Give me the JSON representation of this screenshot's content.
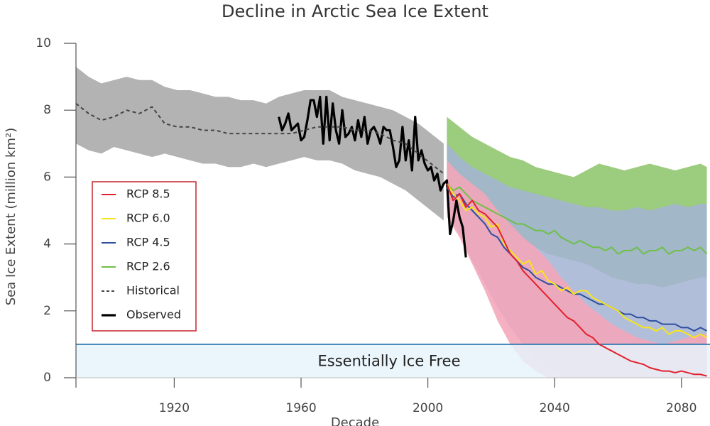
{
  "chart_data": {
    "type": "line",
    "title": "Decline in Arctic Sea Ice Extent",
    "xlabel": "Decade",
    "ylabel": "Sea Ice Extent (million km²)",
    "xlim": [
      1889,
      2089
    ],
    "ylim": [
      0,
      10
    ],
    "xticks": [
      1920,
      1960,
      2000,
      2040,
      2080
    ],
    "yticks": [
      0,
      2,
      4,
      6,
      8,
      10
    ],
    "legend": "left",
    "threshold": {
      "value": 1,
      "label": "Essentially Ice Free",
      "color": "#1f6fa8",
      "fill": "#e6f3fb"
    },
    "bands": [
      {
        "color": "#b3b3b3",
        "x": [
          1889,
          1893,
          1897,
          1901,
          1905,
          1909,
          1913,
          1917,
          1921,
          1925,
          1929,
          1933,
          1937,
          1941,
          1945,
          1949,
          1953,
          1957,
          1961,
          1965,
          1969,
          1973,
          1977,
          1981,
          1985,
          1989,
          1993,
          1997,
          2001,
          2005
        ],
        "upper": [
          9.3,
          9.0,
          8.8,
          8.9,
          9.0,
          8.9,
          8.9,
          8.7,
          8.6,
          8.6,
          8.5,
          8.4,
          8.4,
          8.3,
          8.3,
          8.2,
          8.4,
          8.5,
          8.6,
          8.6,
          8.6,
          8.4,
          8.3,
          8.2,
          8.1,
          8.0,
          7.8,
          7.6,
          7.3,
          7.0
        ],
        "lower": [
          7.0,
          6.8,
          6.7,
          6.9,
          6.8,
          6.7,
          6.6,
          6.7,
          6.6,
          6.5,
          6.4,
          6.4,
          6.3,
          6.3,
          6.4,
          6.3,
          6.4,
          6.5,
          6.6,
          6.5,
          6.5,
          6.4,
          6.2,
          6.1,
          6.0,
          5.8,
          5.6,
          5.3,
          5.0,
          4.7
        ]
      },
      {
        "color": "#9ccc7e",
        "x": [
          2006,
          2010,
          2014,
          2018,
          2022,
          2026,
          2030,
          2034,
          2038,
          2042,
          2046,
          2050,
          2054,
          2058,
          2062,
          2066,
          2070,
          2074,
          2078,
          2082,
          2086,
          2088
        ],
        "upper": [
          7.8,
          7.5,
          7.2,
          7.0,
          6.8,
          6.6,
          6.5,
          6.3,
          6.2,
          6.1,
          6.0,
          6.2,
          6.4,
          6.3,
          6.2,
          6.3,
          6.4,
          6.3,
          6.2,
          6.3,
          6.4,
          6.3
        ],
        "lower": [
          5.5,
          5.2,
          5.0,
          4.7,
          4.5,
          4.3,
          4.1,
          3.9,
          3.7,
          3.6,
          3.5,
          3.4,
          3.2,
          3.0,
          2.9,
          2.8,
          2.8,
          2.7,
          2.8,
          2.9,
          3.0,
          3.0
        ]
      },
      {
        "color": "#a3b3d3",
        "x": [
          2006,
          2010,
          2014,
          2018,
          2022,
          2026,
          2030,
          2034,
          2038,
          2042,
          2046,
          2050,
          2054,
          2058,
          2062,
          2066,
          2070,
          2074,
          2078,
          2082,
          2086,
          2088
        ],
        "upper": [
          7.0,
          6.6,
          6.3,
          6.1,
          5.9,
          5.7,
          5.6,
          5.5,
          5.4,
          5.3,
          5.2,
          5.1,
          5.1,
          5.0,
          5.0,
          5.1,
          5.0,
          5.1,
          5.2,
          5.1,
          5.2,
          5.2
        ],
        "lower": [
          5.0,
          4.3,
          3.5,
          2.8,
          2.1,
          1.5,
          1.0,
          0.6,
          0.3,
          0.1,
          0,
          0,
          0,
          0,
          0,
          0,
          0,
          0,
          0,
          0,
          0,
          0
        ]
      },
      {
        "color": "#f4a6ba",
        "x": [
          2006,
          2010,
          2014,
          2018,
          2022,
          2026,
          2030,
          2034,
          2038,
          2042,
          2046,
          2050,
          2054,
          2058,
          2062,
          2066,
          2070,
          2074,
          2078,
          2082,
          2086,
          2088
        ],
        "upper": [
          6.5,
          6.1,
          5.8,
          5.5,
          5.0,
          4.6,
          4.2,
          3.9,
          3.5,
          3.0,
          2.6,
          2.2,
          1.9,
          1.6,
          1.4,
          1.2,
          1.1,
          1.0,
          1.1,
          1.2,
          1.3,
          1.3
        ],
        "lower": [
          4.8,
          4.2,
          3.4,
          2.6,
          1.7,
          1.0,
          0.5,
          0.2,
          0,
          0,
          0,
          0,
          0,
          0,
          0,
          0,
          0,
          0,
          0,
          0,
          0,
          0
        ]
      }
    ],
    "series": [
      {
        "name": "RCP 8.5",
        "color": "#e3202b",
        "style": "solid",
        "width": 2,
        "x": [
          2006,
          2008,
          2010,
          2012,
          2014,
          2016,
          2018,
          2020,
          2022,
          2024,
          2026,
          2028,
          2030,
          2032,
          2034,
          2036,
          2038,
          2040,
          2042,
          2044,
          2046,
          2048,
          2050,
          2052,
          2054,
          2056,
          2058,
          2060,
          2062,
          2064,
          2066,
          2068,
          2070,
          2072,
          2074,
          2076,
          2078,
          2080,
          2082,
          2084,
          2086,
          2088
        ],
        "values": [
          5.8,
          5.3,
          5.5,
          5.1,
          5.3,
          5.0,
          4.9,
          4.7,
          4.5,
          4.1,
          3.7,
          3.5,
          3.2,
          3.0,
          2.8,
          2.6,
          2.4,
          2.2,
          2.0,
          1.8,
          1.7,
          1.5,
          1.3,
          1.2,
          1.0,
          0.9,
          0.8,
          0.7,
          0.6,
          0.5,
          0.45,
          0.4,
          0.3,
          0.25,
          0.2,
          0.2,
          0.15,
          0.2,
          0.15,
          0.1,
          0.1,
          0.05
        ]
      },
      {
        "name": "RCP 6.0",
        "color": "#f7e51b",
        "style": "solid",
        "width": 2,
        "x": [
          2006,
          2008,
          2010,
          2012,
          2014,
          2016,
          2018,
          2020,
          2022,
          2024,
          2026,
          2028,
          2030,
          2032,
          2034,
          2036,
          2038,
          2040,
          2042,
          2044,
          2046,
          2048,
          2050,
          2052,
          2054,
          2056,
          2058,
          2060,
          2062,
          2064,
          2066,
          2068,
          2070,
          2072,
          2074,
          2076,
          2078,
          2080,
          2082,
          2084,
          2086,
          2088
        ],
        "values": [
          5.8,
          5.5,
          5.3,
          5.0,
          5.1,
          4.9,
          4.8,
          4.5,
          4.6,
          4.0,
          3.8,
          3.6,
          3.4,
          3.5,
          3.1,
          3.2,
          2.9,
          2.8,
          2.6,
          2.7,
          2.5,
          2.6,
          2.6,
          2.4,
          2.3,
          2.2,
          2.1,
          2.0,
          1.8,
          1.7,
          1.6,
          1.5,
          1.5,
          1.4,
          1.5,
          1.3,
          1.4,
          1.4,
          1.3,
          1.2,
          1.3,
          1.2
        ]
      },
      {
        "name": "RCP 4.5",
        "color": "#2f4f9e",
        "style": "solid",
        "width": 2,
        "x": [
          2006,
          2008,
          2010,
          2012,
          2014,
          2016,
          2018,
          2020,
          2022,
          2024,
          2026,
          2028,
          2030,
          2032,
          2034,
          2036,
          2038,
          2040,
          2042,
          2044,
          2046,
          2048,
          2050,
          2052,
          2054,
          2056,
          2058,
          2060,
          2062,
          2064,
          2066,
          2068,
          2070,
          2072,
          2074,
          2076,
          2078,
          2080,
          2082,
          2084,
          2086,
          2088
        ],
        "values": [
          5.7,
          5.4,
          5.5,
          5.2,
          5.0,
          4.8,
          4.6,
          4.3,
          4.2,
          3.9,
          3.7,
          3.5,
          3.3,
          3.2,
          3.0,
          2.9,
          2.8,
          2.8,
          2.7,
          2.6,
          2.5,
          2.5,
          2.4,
          2.3,
          2.2,
          2.2,
          2.1,
          2.0,
          1.9,
          1.9,
          1.8,
          1.8,
          1.7,
          1.7,
          1.6,
          1.6,
          1.6,
          1.5,
          1.5,
          1.4,
          1.5,
          1.4
        ]
      },
      {
        "name": "RCP 2.6",
        "color": "#6fbf4a",
        "style": "solid",
        "width": 2,
        "x": [
          2006,
          2008,
          2010,
          2012,
          2014,
          2016,
          2018,
          2020,
          2022,
          2024,
          2026,
          2028,
          2030,
          2032,
          2034,
          2036,
          2038,
          2040,
          2042,
          2044,
          2046,
          2048,
          2050,
          2052,
          2054,
          2056,
          2058,
          2060,
          2062,
          2064,
          2066,
          2068,
          2070,
          2072,
          2074,
          2076,
          2078,
          2080,
          2082,
          2084,
          2086,
          2088
        ],
        "values": [
          5.8,
          5.6,
          5.7,
          5.5,
          5.3,
          5.2,
          5.1,
          5.0,
          4.9,
          4.8,
          4.7,
          4.6,
          4.6,
          4.5,
          4.4,
          4.4,
          4.3,
          4.4,
          4.2,
          4.1,
          4.0,
          4.1,
          4.0,
          3.9,
          3.9,
          3.8,
          3.9,
          3.7,
          3.8,
          3.8,
          3.9,
          3.7,
          3.8,
          3.8,
          3.9,
          3.7,
          3.8,
          3.8,
          3.9,
          3.8,
          3.9,
          3.7
        ]
      },
      {
        "name": "Historical",
        "color": "#444444",
        "style": "dashed",
        "width": 2,
        "x": [
          1889,
          1893,
          1897,
          1901,
          1905,
          1909,
          1913,
          1917,
          1921,
          1925,
          1929,
          1933,
          1937,
          1941,
          1945,
          1949,
          1953,
          1957,
          1961,
          1965,
          1969,
          1973,
          1977,
          1981,
          1985,
          1989,
          1993,
          1997,
          2001,
          2005
        ],
        "values": [
          8.2,
          7.9,
          7.7,
          7.8,
          8.0,
          7.9,
          8.1,
          7.6,
          7.5,
          7.5,
          7.4,
          7.4,
          7.3,
          7.3,
          7.3,
          7.3,
          7.3,
          7.3,
          7.4,
          7.5,
          7.5,
          7.5,
          7.4,
          7.4,
          7.3,
          7.1,
          7.0,
          6.7,
          6.4,
          6.1
        ]
      },
      {
        "name": "Observed",
        "color": "#000000",
        "style": "solid",
        "width": 3.2,
        "x": [
          1953,
          1954,
          1955,
          1956,
          1957,
          1958,
          1959,
          1960,
          1961,
          1962,
          1963,
          1964,
          1965,
          1966,
          1967,
          1968,
          1969,
          1970,
          1971,
          1972,
          1973,
          1974,
          1975,
          1976,
          1977,
          1978,
          1979,
          1980,
          1981,
          1982,
          1983,
          1984,
          1985,
          1986,
          1987,
          1988,
          1989,
          1990,
          1991,
          1992,
          1993,
          1994,
          1995,
          1996,
          1997,
          1998,
          1999,
          2000,
          2001,
          2002,
          2003,
          2004,
          2005,
          2006,
          2007,
          2008,
          2009,
          2010,
          2011,
          2012
        ],
        "values": [
          7.8,
          7.4,
          7.6,
          7.9,
          7.4,
          7.5,
          7.6,
          7.1,
          7.2,
          7.7,
          8.3,
          8.3,
          7.8,
          8.4,
          7.0,
          8.4,
          7.1,
          8.2,
          7.4,
          7.0,
          8.0,
          7.2,
          7.3,
          7.5,
          7.1,
          7.7,
          7.2,
          7.8,
          7.0,
          7.4,
          7.5,
          7.3,
          7.0,
          7.5,
          7.4,
          7.4,
          6.9,
          6.3,
          6.5,
          7.5,
          6.5,
          7.1,
          6.2,
          7.8,
          6.5,
          6.8,
          6.4,
          6.2,
          6.3,
          5.9,
          6.1,
          5.6,
          5.8,
          5.9,
          4.3,
          4.7,
          5.3,
          4.8,
          4.5,
          3.6
        ]
      }
    ]
  }
}
